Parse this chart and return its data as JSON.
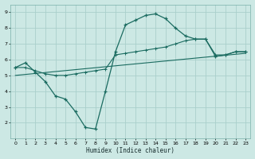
{
  "xlabel": "Humidex (Indice chaleur)",
  "bg_color": "#cce8e4",
  "grid_color": "#aacfcb",
  "line_color": "#1a6b60",
  "xlim": [
    -0.5,
    23.5
  ],
  "ylim": [
    1.0,
    9.5
  ],
  "xticks": [
    0,
    1,
    2,
    3,
    4,
    5,
    6,
    7,
    8,
    9,
    10,
    11,
    12,
    13,
    14,
    15,
    16,
    17,
    18,
    19,
    20,
    21,
    22,
    23
  ],
  "yticks": [
    2,
    3,
    4,
    5,
    6,
    7,
    8,
    9
  ],
  "line1_x": [
    0,
    1,
    2,
    3,
    4,
    5,
    6,
    7,
    8,
    9,
    10,
    11,
    12,
    13,
    14,
    15,
    16,
    17,
    18,
    19,
    20,
    21,
    22,
    23
  ],
  "line1_y": [
    5.5,
    5.8,
    5.2,
    4.6,
    3.7,
    3.5,
    2.7,
    1.7,
    1.6,
    4.0,
    6.5,
    8.2,
    8.5,
    8.8,
    8.9,
    8.6,
    8.0,
    7.5,
    7.3,
    7.3,
    6.2,
    6.3,
    6.5,
    6.5
  ],
  "line2_x": [
    0,
    1,
    2,
    3,
    4,
    5,
    6,
    7,
    8,
    9,
    10,
    11,
    12,
    13,
    14,
    15,
    16,
    17,
    18,
    19,
    20,
    21,
    22,
    23
  ],
  "line2_y": [
    5.5,
    5.5,
    5.3,
    5.1,
    5.0,
    5.0,
    5.1,
    5.2,
    5.3,
    5.4,
    6.3,
    6.4,
    6.5,
    6.6,
    6.7,
    6.8,
    7.0,
    7.2,
    7.3,
    7.3,
    6.3,
    6.3,
    6.5,
    6.5
  ],
  "line3_x": [
    0,
    23
  ],
  "line3_y": [
    5.0,
    6.4
  ]
}
